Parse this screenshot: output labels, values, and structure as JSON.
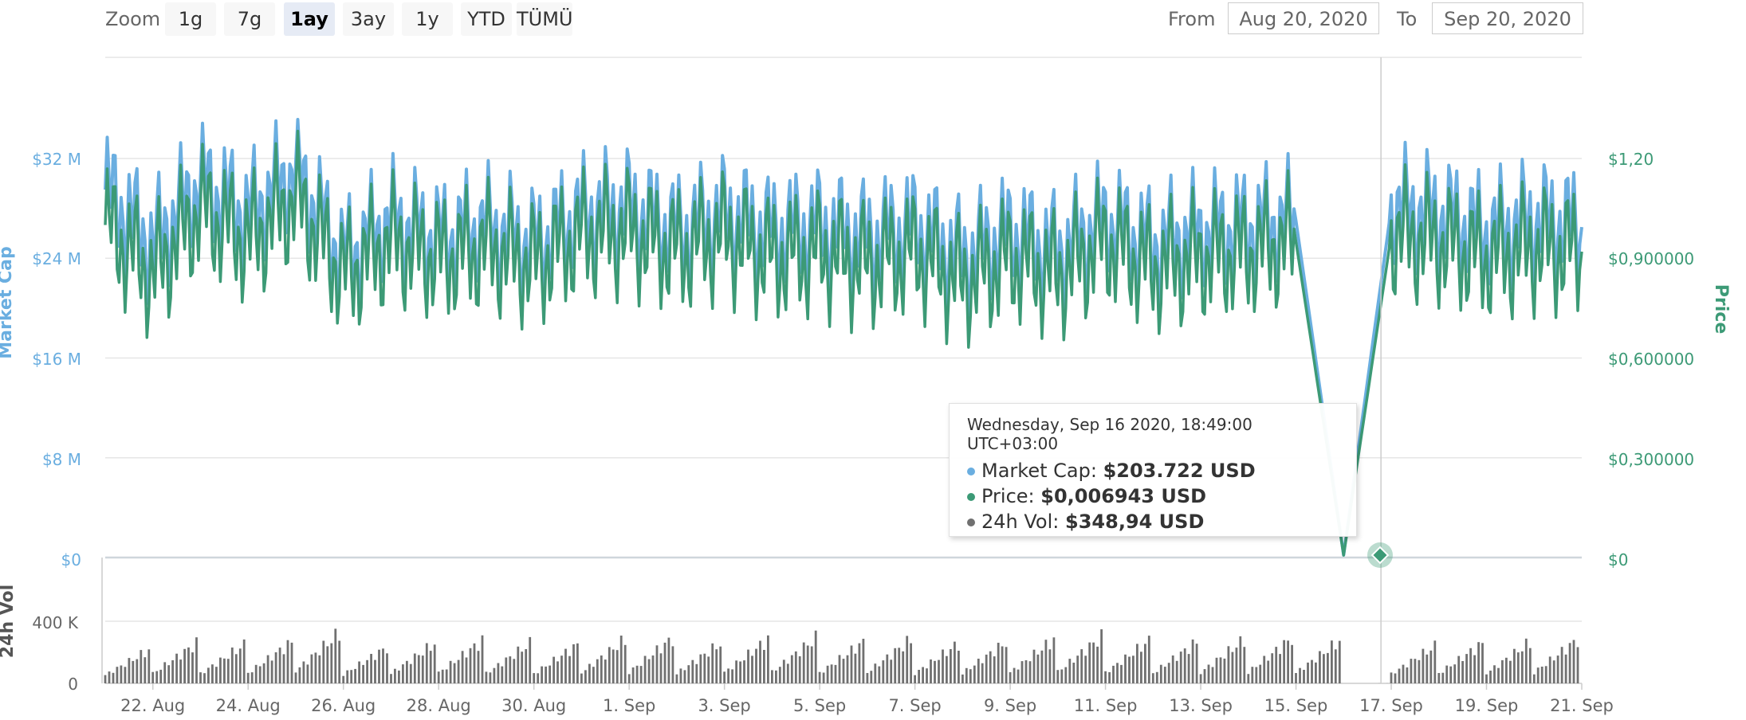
{
  "toolbar": {
    "zoom_label": "Zoom",
    "zoom_buttons": [
      "1g",
      "7g",
      "1ay",
      "3ay",
      "1y",
      "YTD",
      "TÜMÜ"
    ],
    "active_zoom": "1ay",
    "from_label": "From",
    "from_value": "Aug 20, 2020",
    "to_label": "To",
    "to_value": "Sep 20, 2020"
  },
  "tooltip": {
    "date": "Wednesday, Sep 16 2020, 18:49:00 UTC+03:00",
    "rows": [
      {
        "label": "Market Cap:",
        "value": "$203.722 USD",
        "color": "#6aaee0"
      },
      {
        "label": "Price:",
        "value": "$0,006943 USD",
        "color": "#3c9a76"
      },
      {
        "label": "24h Vol:",
        "value": "$348,94 USD",
        "color": "#707070"
      }
    ]
  },
  "colors": {
    "market_cap": "#6aaee0",
    "price": "#3c9a76",
    "volume": "#707070",
    "grid": "#e6e6e6"
  },
  "chart_data": {
    "type": "line",
    "x_axis": {
      "type": "datetime",
      "range": [
        "2020-08-21",
        "2020-09-21"
      ],
      "tick_labels": [
        "22. Aug",
        "24. Aug",
        "26. Aug",
        "28. Aug",
        "30. Aug",
        "1. Sep",
        "3. Sep",
        "5. Sep",
        "7. Sep",
        "9. Sep",
        "11. Sep",
        "13. Sep",
        "15. Sep",
        "17. Sep",
        "19. Sep",
        "21. Sep"
      ]
    },
    "y_axes": [
      {
        "name": "Market Cap",
        "tick_labels": [
          "$0",
          "$8 M",
          "$16 M",
          "$24 M",
          "$32 M"
        ],
        "range": [
          0,
          32000000
        ]
      },
      {
        "name": "Price",
        "tick_labels": [
          "$0",
          "$0,300000",
          "$0,600000",
          "$0,900000",
          "$1,20"
        ],
        "range": [
          0,
          1.2
        ]
      },
      {
        "name": "24h Vol",
        "tick_labels": [
          "0",
          "400 K"
        ],
        "range": [
          0,
          400000
        ]
      }
    ],
    "series": [
      {
        "name": "Market Cap",
        "axis": "Market Cap",
        "points": [
          [
            "2020-08-21",
            29500000
          ],
          [
            "2020-08-22",
            25000000
          ],
          [
            "2020-08-23",
            30000000
          ],
          [
            "2020-08-24",
            27500000
          ],
          [
            "2020-08-25",
            31000000
          ],
          [
            "2020-08-26",
            24000000
          ],
          [
            "2020-08-27",
            27000000
          ],
          [
            "2020-08-28",
            25500000
          ],
          [
            "2020-08-29",
            26500000
          ],
          [
            "2020-08-30",
            25000000
          ],
          [
            "2020-08-31",
            27500000
          ],
          [
            "2020-09-01",
            28000000
          ],
          [
            "2020-09-02",
            26000000
          ],
          [
            "2020-09-03",
            27500000
          ],
          [
            "2020-09-04",
            26000000
          ],
          [
            "2020-09-05",
            26500000
          ],
          [
            "2020-09-06",
            25500000
          ],
          [
            "2020-09-07",
            26500000
          ],
          [
            "2020-09-08",
            24000000
          ],
          [
            "2020-09-09",
            26000000
          ],
          [
            "2020-09-10",
            24500000
          ],
          [
            "2020-09-11",
            27000000
          ],
          [
            "2020-09-12",
            25000000
          ],
          [
            "2020-09-13",
            26000000
          ],
          [
            "2020-09-14",
            26500000
          ],
          [
            "2020-09-15",
            27000000
          ],
          [
            "2020-09-16",
            203722
          ],
          [
            "2020-09-17",
            28000000
          ],
          [
            "2020-09-18",
            27500000
          ],
          [
            "2020-09-19",
            26000000
          ],
          [
            "2020-09-20",
            27000000
          ],
          [
            "2020-09-21",
            26500000
          ]
        ]
      },
      {
        "name": "Price",
        "axis": "Price",
        "points": [
          [
            "2020-08-21",
            1.0
          ],
          [
            "2020-08-22",
            0.85
          ],
          [
            "2020-08-23",
            1.05
          ],
          [
            "2020-08-24",
            0.95
          ],
          [
            "2020-08-25",
            1.08
          ],
          [
            "2020-08-26",
            0.85
          ],
          [
            "2020-08-27",
            0.95
          ],
          [
            "2020-08-28",
            0.9
          ],
          [
            "2020-08-29",
            0.93
          ],
          [
            "2020-08-30",
            0.88
          ],
          [
            "2020-08-31",
            0.97
          ],
          [
            "2020-09-01",
            0.98
          ],
          [
            "2020-09-02",
            0.92
          ],
          [
            "2020-09-03",
            0.97
          ],
          [
            "2020-09-04",
            0.9
          ],
          [
            "2020-09-05",
            0.92
          ],
          [
            "2020-09-06",
            0.88
          ],
          [
            "2020-09-07",
            0.92
          ],
          [
            "2020-09-08",
            0.83
          ],
          [
            "2020-09-09",
            0.9
          ],
          [
            "2020-09-10",
            0.85
          ],
          [
            "2020-09-11",
            0.95
          ],
          [
            "2020-09-12",
            0.87
          ],
          [
            "2020-09-13",
            0.9
          ],
          [
            "2020-09-14",
            0.92
          ],
          [
            "2020-09-15",
            0.95
          ],
          [
            "2020-09-16",
            0.006943
          ],
          [
            "2020-09-17",
            0.97
          ],
          [
            "2020-09-18",
            0.95
          ],
          [
            "2020-09-19",
            0.9
          ],
          [
            "2020-09-20",
            0.93
          ],
          [
            "2020-09-21",
            0.92
          ]
        ]
      },
      {
        "name": "24h Vol",
        "axis": "24h Vol",
        "type": "column",
        "points": [
          [
            "2020-08-21",
            250000
          ],
          [
            "2020-08-22",
            300000
          ],
          [
            "2020-08-23",
            290000
          ],
          [
            "2020-08-24",
            310000
          ],
          [
            "2020-08-25",
            380000
          ],
          [
            "2020-08-26",
            270000
          ],
          [
            "2020-08-27",
            300000
          ],
          [
            "2020-08-28",
            320000
          ],
          [
            "2020-08-29",
            300000
          ],
          [
            "2020-08-30",
            290000
          ],
          [
            "2020-08-31",
            330000
          ],
          [
            "2020-09-01",
            340000
          ],
          [
            "2020-09-02",
            300000
          ],
          [
            "2020-09-03",
            330000
          ],
          [
            "2020-09-04",
            340000
          ],
          [
            "2020-09-05",
            310000
          ],
          [
            "2020-09-06",
            330000
          ],
          [
            "2020-09-07",
            300000
          ],
          [
            "2020-09-08",
            310000
          ],
          [
            "2020-09-09",
            330000
          ],
          [
            "2020-09-10",
            350000
          ],
          [
            "2020-09-11",
            320000
          ],
          [
            "2020-09-12",
            310000
          ],
          [
            "2020-09-13",
            330000
          ],
          [
            "2020-09-14",
            340000
          ],
          [
            "2020-09-15",
            320000
          ],
          [
            "2020-09-16",
            348.94
          ],
          [
            "2020-09-17",
            280000
          ],
          [
            "2020-09-18",
            300000
          ],
          [
            "2020-09-19",
            310000
          ],
          [
            "2020-09-20",
            330000
          ],
          [
            "2020-09-21",
            300000
          ]
        ]
      }
    ],
    "legend": "none",
    "grid": true
  }
}
